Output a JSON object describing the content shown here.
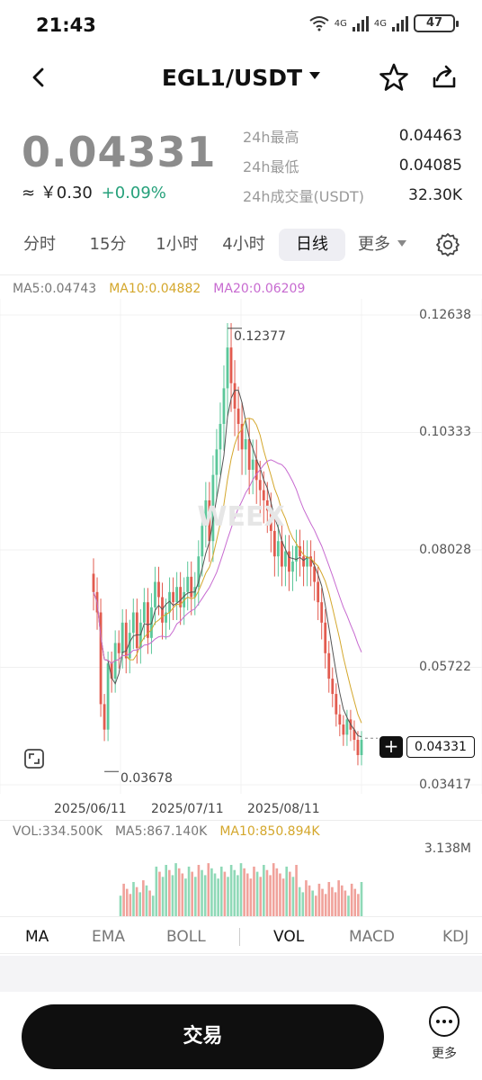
{
  "status": {
    "time": "21:43",
    "net1": "4G",
    "net2": "4G",
    "battery": "47"
  },
  "header": {
    "pair": "EGL1/USDT"
  },
  "price": {
    "last": "0.04331",
    "cny": "≈ ￥0.30",
    "change": "+0.09%"
  },
  "stats": [
    {
      "label": "24h最高",
      "value": "0.04463"
    },
    {
      "label": "24h最低",
      "value": "0.04085"
    },
    {
      "label": "24h成交量(USDT)",
      "value": "32.30K"
    }
  ],
  "tabs": [
    "分时",
    "15分",
    "1小时",
    "4小时",
    "日线",
    "更多"
  ],
  "active_tab": "日线",
  "ma_legend": {
    "ma5": "MA5:0.04743",
    "ma10": "MA10:0.04882",
    "ma20": "MA20:0.06209"
  },
  "colors": {
    "up": "#5bc79a",
    "down": "#e25b4f",
    "ma5": "#555555",
    "ma10": "#d4a72c",
    "ma20": "#c76ad0",
    "accent_green": "#26a17b"
  },
  "chart_data": {
    "type": "candlestick",
    "timeframe": "日线",
    "y_ticks": [
      "0.12638",
      "0.10333",
      "0.08028",
      "0.05722",
      "0.03417"
    ],
    "ylim": [
      0.03417,
      0.12638
    ],
    "x_ticks": [
      "2025/06/11",
      "2025/07/11",
      "2025/08/11"
    ],
    "high_marker": "0.12377",
    "low_marker": "0.03678",
    "last_price": "0.04331",
    "close_series": [
      0.072,
      0.068,
      0.05,
      0.045,
      0.058,
      0.055,
      0.062,
      0.06,
      0.066,
      0.059,
      0.064,
      0.068,
      0.061,
      0.066,
      0.07,
      0.063,
      0.069,
      0.074,
      0.071,
      0.066,
      0.068,
      0.072,
      0.07,
      0.073,
      0.069,
      0.072,
      0.075,
      0.071,
      0.073,
      0.079,
      0.085,
      0.09,
      0.082,
      0.095,
      0.1,
      0.105,
      0.112,
      0.12,
      0.113,
      0.108,
      0.105,
      0.1,
      0.102,
      0.096,
      0.098,
      0.094,
      0.092,
      0.09,
      0.088,
      0.084,
      0.079,
      0.082,
      0.077,
      0.08,
      0.076,
      0.078,
      0.081,
      0.079,
      0.077,
      0.079,
      0.077,
      0.074,
      0.07,
      0.066,
      0.06,
      0.055,
      0.052,
      0.048,
      0.046,
      0.044,
      0.047,
      0.045,
      0.043,
      0.04,
      0.043
    ],
    "volume": {
      "label": "VOL:334.500K",
      "ma5": "MA5:867.140K",
      "ma10": "MA10:850.894K",
      "max": "3.138M"
    }
  },
  "indicators": [
    "MA",
    "EMA",
    "BOLL",
    "VOL",
    "MACD",
    "KDJ"
  ],
  "bottom": {
    "trade": "交易",
    "more": "更多"
  }
}
